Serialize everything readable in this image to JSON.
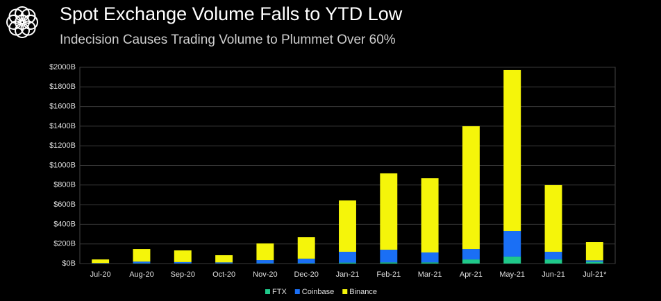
{
  "chart_data": {
    "type": "stacked-bar",
    "title": "Spot Exchange Volume Falls to YTD Low",
    "subtitle": "Indecision Causes Trading Volume to Plummet Over 60%",
    "categories": [
      "Jul-20",
      "Aug-20",
      "Sep-20",
      "Oct-20",
      "Nov-20",
      "Dec-20",
      "Jan-21",
      "Feb-21",
      "Mar-21",
      "Apr-21",
      "May-21",
      "Jun-21",
      "Jul-21*"
    ],
    "series": [
      {
        "name": "FTX",
        "color": "#1fc98a",
        "values": [
          1,
          3,
          2,
          2,
          3,
          4,
          10,
          12,
          12,
          42,
          71,
          42,
          18
        ]
      },
      {
        "name": "Coinbase",
        "color": "#1a6ff5",
        "values": [
          4,
          17,
          13,
          10,
          32,
          46,
          110,
          129,
          101,
          106,
          261,
          78,
          15
        ]
      },
      {
        "name": "Binance",
        "color": "#f5f50a",
        "values": [
          37,
          128,
          119,
          73,
          170,
          218,
          523,
          778,
          756,
          1251,
          1640,
          679,
          186
        ]
      }
    ],
    "ylim": [
      0,
      2000
    ],
    "yticks": [
      {
        "value": 0,
        "label": "$0B"
      },
      {
        "value": 200,
        "label": "$200B"
      },
      {
        "value": 400,
        "label": "$400B"
      },
      {
        "value": 600,
        "label": "$600B"
      },
      {
        "value": 800,
        "label": "$800B"
      },
      {
        "value": 1000,
        "label": "$1000B"
      },
      {
        "value": 1200,
        "label": "$1200B"
      },
      {
        "value": 1400,
        "label": "$1400B"
      },
      {
        "value": 1600,
        "label": "$1600B"
      },
      {
        "value": 1800,
        "label": "$1800B"
      },
      {
        "value": 2000,
        "label": "$2000B"
      }
    ],
    "grid": true
  }
}
